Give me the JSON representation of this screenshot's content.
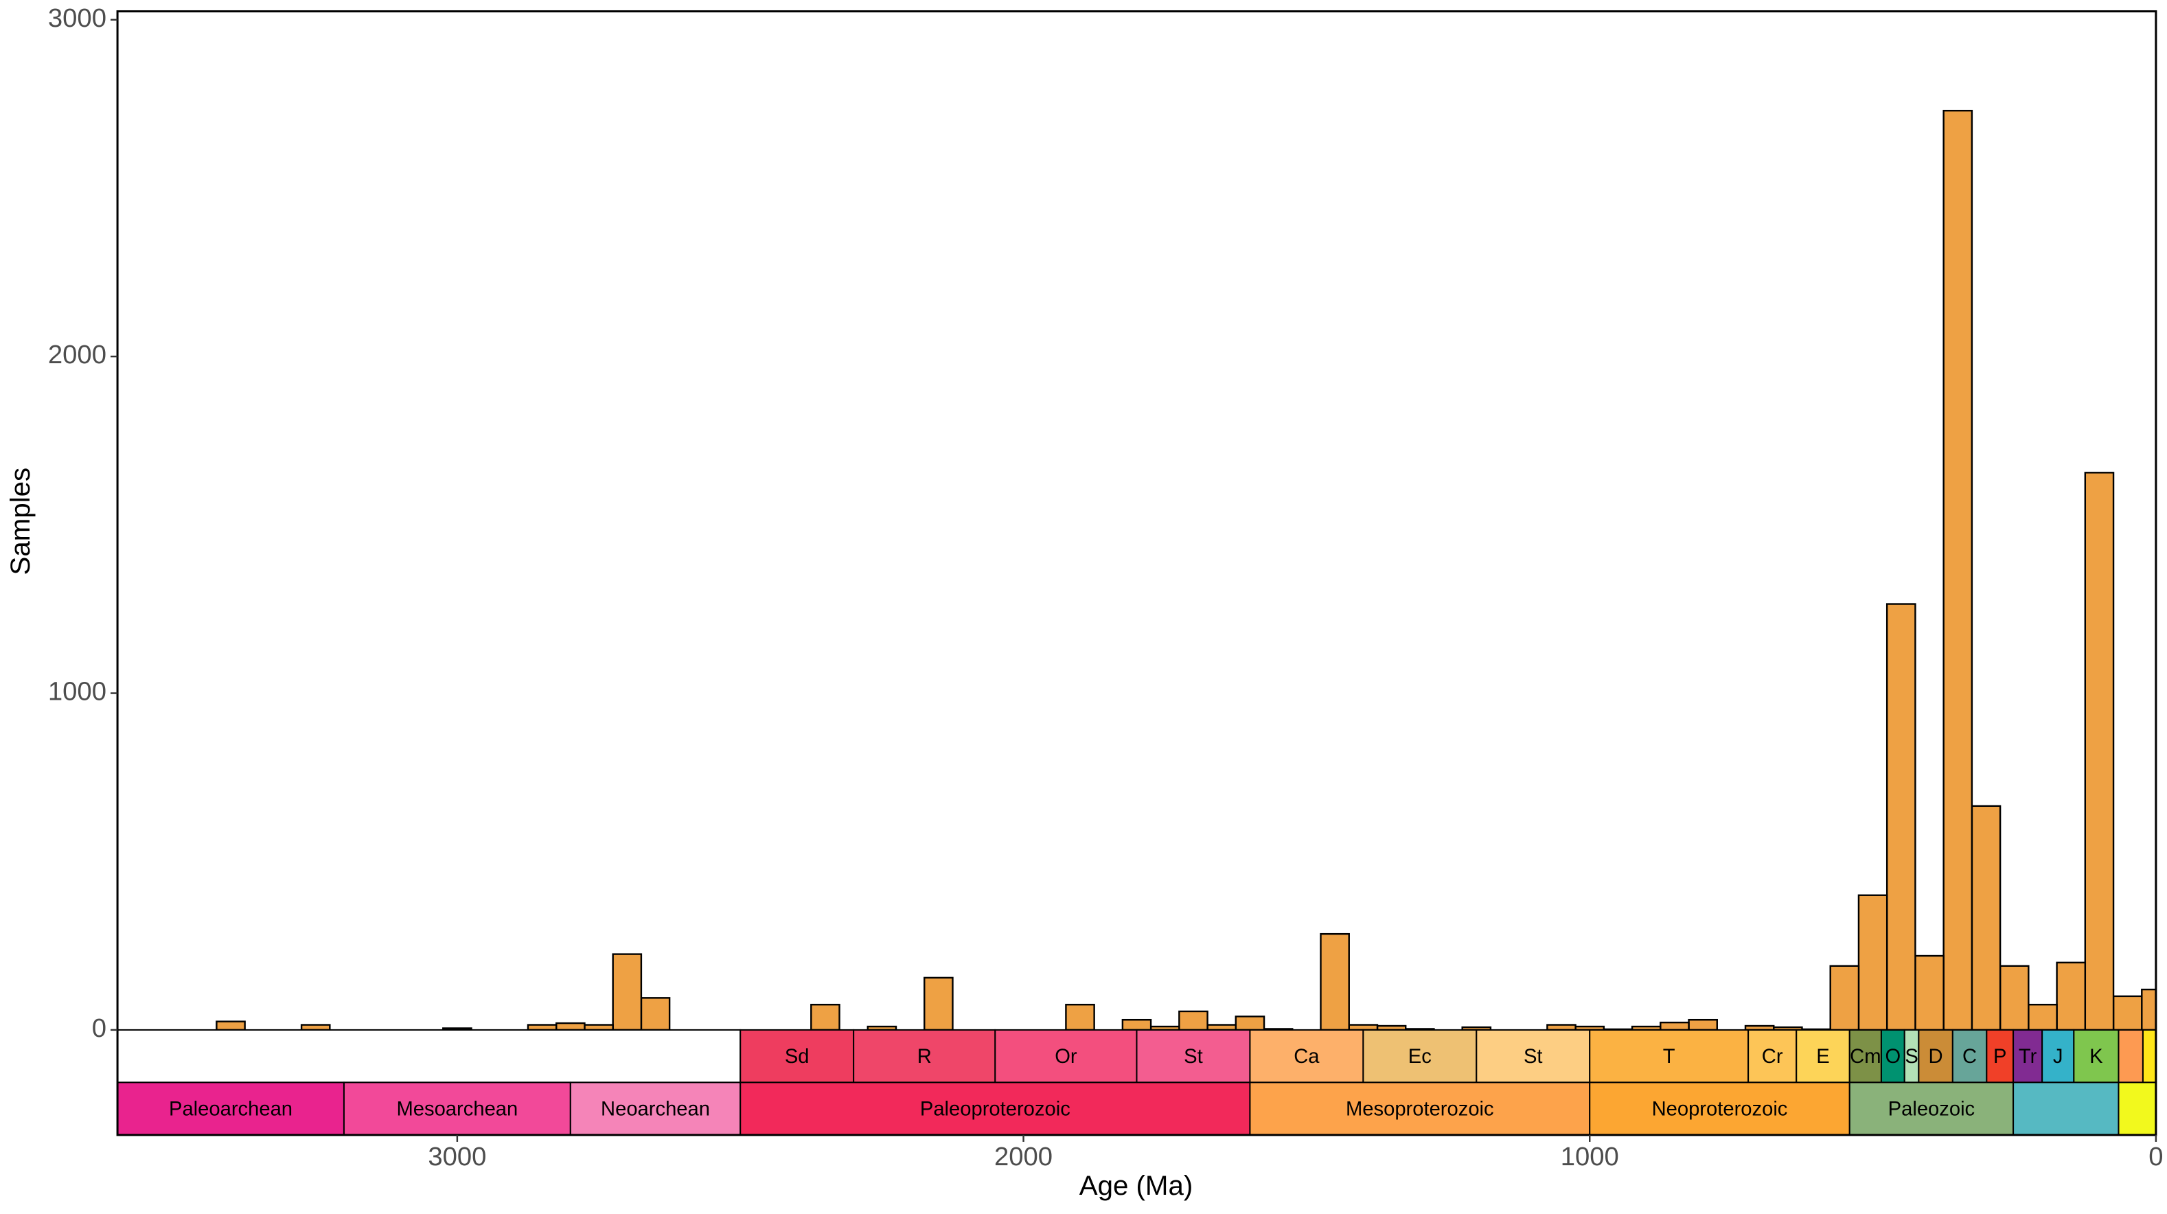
{
  "chart_data": {
    "type": "histogram",
    "x_label": "Age (Ma)",
    "y_label": "Samples",
    "bins": [
      -25,
      25,
      75,
      125,
      175,
      225,
      275,
      325,
      375,
      425,
      475,
      525,
      575,
      625,
      675,
      725,
      775,
      825,
      875,
      925,
      975,
      1025,
      1075,
      1125,
      1175,
      1225,
      1275,
      1325,
      1375,
      1425,
      1475,
      1525,
      1575,
      1625,
      1675,
      1725,
      1775,
      1825,
      1875,
      1925,
      1975,
      2025,
      2075,
      2125,
      2175,
      2225,
      2275,
      2325,
      2375,
      2425,
      2475,
      2525,
      2575,
      2625,
      2675,
      2725,
      2775,
      2825,
      2875,
      2925,
      2975,
      3025,
      3075,
      3125,
      3175,
      3225,
      3275,
      3325,
      3375,
      3425,
      3475,
      3525,
      3575,
      3625
    ],
    "counts": [
      120,
      100,
      1655,
      200,
      75,
      190,
      665,
      2730,
      220,
      1265,
      400,
      190,
      2,
      8,
      12,
      0,
      30,
      22,
      10,
      2,
      10,
      15,
      0,
      0,
      8,
      0,
      3,
      12,
      15,
      285,
      0,
      3,
      40,
      15,
      55,
      10,
      30,
      0,
      75,
      0,
      0,
      0,
      0,
      155,
      0,
      10,
      0,
      75,
      0,
      0,
      0,
      0,
      0,
      95,
      225,
      15,
      20,
      15,
      0,
      0,
      5,
      0,
      0,
      0,
      0,
      15,
      0,
      0,
      25,
      0,
      0,
      0,
      0
    ],
    "color": "#eea144",
    "xlim": [
      3600,
      0
    ],
    "ylim": [
      0,
      3025
    ],
    "xticks": [
      3000,
      2000,
      1000,
      0
    ],
    "yticks": [
      0,
      1000,
      2000,
      3000
    ],
    "timescale": {
      "periods": [
        {
          "name": "Sd",
          "start": 2500,
          "end": 2300,
          "color": "#ee3d5f"
        },
        {
          "name": "R",
          "start": 2300,
          "end": 2050,
          "color": "#ef4669"
        },
        {
          "name": "Or",
          "start": 2050,
          "end": 1800,
          "color": "#f34f7e"
        },
        {
          "name": "St",
          "start": 1800,
          "end": 1600,
          "color": "#f35d90"
        },
        {
          "name": "Ca",
          "start": 1600,
          "end": 1400,
          "color": "#fdb06a"
        },
        {
          "name": "Ec",
          "start": 1400,
          "end": 1200,
          "color": "#eec173"
        },
        {
          "name": "St",
          "start": 1200,
          "end": 1000,
          "color": "#fdce83"
        },
        {
          "name": "T",
          "start": 1000,
          "end": 720,
          "color": "#fbb243"
        },
        {
          "name": "Cr",
          "start": 720,
          "end": 635,
          "color": "#fdc557"
        },
        {
          "name": "E",
          "start": 635,
          "end": 541,
          "color": "#fdd458"
        },
        {
          "name": "Cm",
          "start": 541,
          "end": 485,
          "color": "#7d9147"
        },
        {
          "name": "O",
          "start": 485,
          "end": 444,
          "color": "#009270"
        },
        {
          "name": "S",
          "start": 444,
          "end": 419,
          "color": "#b3e1b6"
        },
        {
          "name": "D",
          "start": 419,
          "end": 359,
          "color": "#cb8c37"
        },
        {
          "name": "C",
          "start": 359,
          "end": 299,
          "color": "#67a599"
        },
        {
          "name": "P",
          "start": 299,
          "end": 252,
          "color": "#f04028"
        },
        {
          "name": "Tr",
          "start": 252,
          "end": 201,
          "color": "#812b92"
        },
        {
          "name": "J",
          "start": 201,
          "end": 145,
          "color": "#34b2c9"
        },
        {
          "name": "K",
          "start": 145,
          "end": 66,
          "color": "#7fc64e"
        },
        {
          "name": null,
          "start": 66,
          "end": 23,
          "color": "#fd9a52"
        },
        {
          "name": null,
          "start": 23,
          "end": 0,
          "color": "#ffe619"
        }
      ],
      "eras": [
        {
          "name": "Paleoarchean",
          "start": 3600,
          "end": 3200,
          "color": "#e9238e"
        },
        {
          "name": "Mesoarchean",
          "start": 3200,
          "end": 2800,
          "color": "#f24999"
        },
        {
          "name": "Neoarchean",
          "start": 2800,
          "end": 2500,
          "color": "#f584b8"
        },
        {
          "name": "Paleoproterozoic",
          "start": 2500,
          "end": 1600,
          "color": "#f2295a"
        },
        {
          "name": "Mesoproterozoic",
          "start": 1600,
          "end": 1000,
          "color": "#fda34b"
        },
        {
          "name": "Neoproterozoic",
          "start": 1000,
          "end": 541,
          "color": "#fca632"
        },
        {
          "name": "Paleozoic",
          "start": 541,
          "end": 252,
          "color": "#8ab27a"
        },
        {
          "name": null,
          "start": 252,
          "end": 66,
          "color": "#56b9c2"
        },
        {
          "name": null,
          "start": 66,
          "end": 0,
          "color": "#f2f91d"
        }
      ]
    }
  }
}
